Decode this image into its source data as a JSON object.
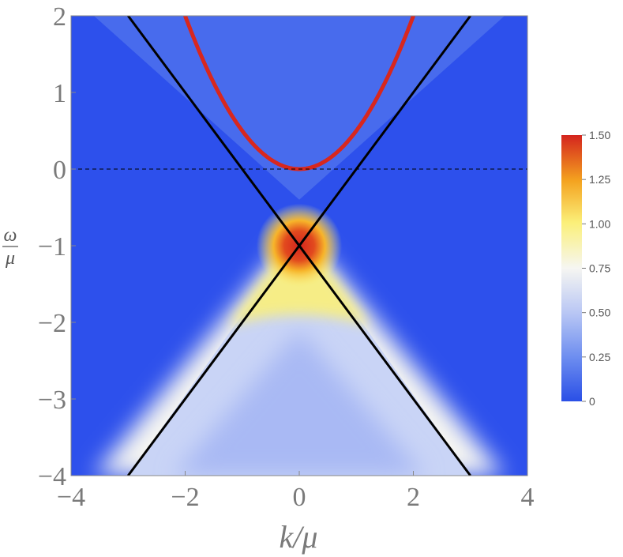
{
  "chart_data": {
    "type": "heatmap",
    "title": "",
    "xlabel": "k/μ",
    "ylabel_num": "ω",
    "ylabel_den": "μ",
    "xlim": [
      -4,
      4
    ],
    "ylim": [
      -4,
      2
    ],
    "xticks": [
      -4,
      -2,
      0,
      2,
      4
    ],
    "yticks": [
      -4,
      -3,
      -2,
      -1,
      0,
      1,
      2
    ],
    "xtick_labels": [
      "−4",
      "−2",
      "0",
      "2",
      "4"
    ],
    "ytick_labels": [
      "−4",
      "−3",
      "−2",
      "−1",
      "0",
      "1",
      "2"
    ],
    "colorbar": {
      "range": [
        0,
        1.5
      ],
      "ticks": [
        0,
        0.25,
        0.5,
        0.75,
        1.0,
        1.25,
        1.5
      ],
      "tick_labels": [
        "0",
        "0.25",
        "0.50",
        "0.75",
        "1.00",
        "1.25",
        "1.50"
      ],
      "colors": [
        "#2a4fe6",
        "#6f8ff0",
        "#b8c6f4",
        "#f6f6f2",
        "#fbf07a",
        "#f4a21f",
        "#d4241e"
      ]
    },
    "background_color": "#2d50ec",
    "lines": [
      {
        "name": "",
        "x": [
          -3,
          3
        ],
        "y": [
          2,
          -4
        ],
        "color": "#000000"
      },
      {
        "name": "",
        "x": [
          -3,
          3
        ],
        "y": [
          -4,
          2
        ],
        "color": "#000000"
      },
      {
        "name": "",
        "x": [
          -4,
          4
        ],
        "y": [
          0,
          0
        ],
        "color": "#000000",
        "style": "dashed"
      }
    ],
    "dispersion_curve": {
      "color": "#d8271e",
      "vertex": [
        0,
        0
      ],
      "form": "ω/μ = (k/μ)²/2"
    },
    "spectral_peak": {
      "center": [
        0,
        -1
      ],
      "color": "#d4241e"
    }
  }
}
